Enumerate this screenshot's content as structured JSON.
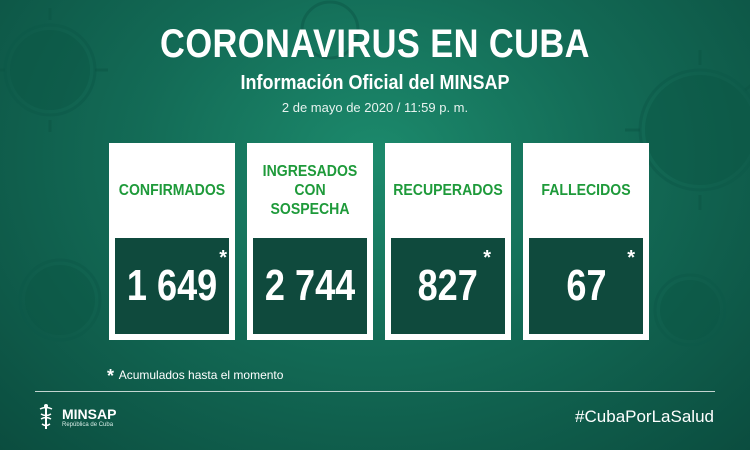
{
  "header": {
    "title": "CORONAVIRUS EN CUBA",
    "subtitle": "Información Oficial del MINSAP",
    "date": "2 de mayo de 2020 / 11:59 p. m."
  },
  "cards": [
    {
      "label": "CONFIRMADOS",
      "value": "1 649",
      "asterisk": "*"
    },
    {
      "label": "INGRESADOS CON SOSPECHA",
      "value": "2 744",
      "asterisk": ""
    },
    {
      "label": "RECUPERADOS",
      "value": "827",
      "asterisk": "*"
    },
    {
      "label": "FALLECIDOS",
      "value": "67",
      "asterisk": "*"
    }
  ],
  "note": {
    "star": "*",
    "text": "Acumulados hasta el momento"
  },
  "footer": {
    "logo_name": "MINSAP",
    "logo_sub": "República de Cuba",
    "hashtag": "#CubaPorLaSalud"
  },
  "colors": {
    "label_green": "#1e9a3a",
    "value_bg": "#0f4a3d",
    "background": "#136b56"
  }
}
